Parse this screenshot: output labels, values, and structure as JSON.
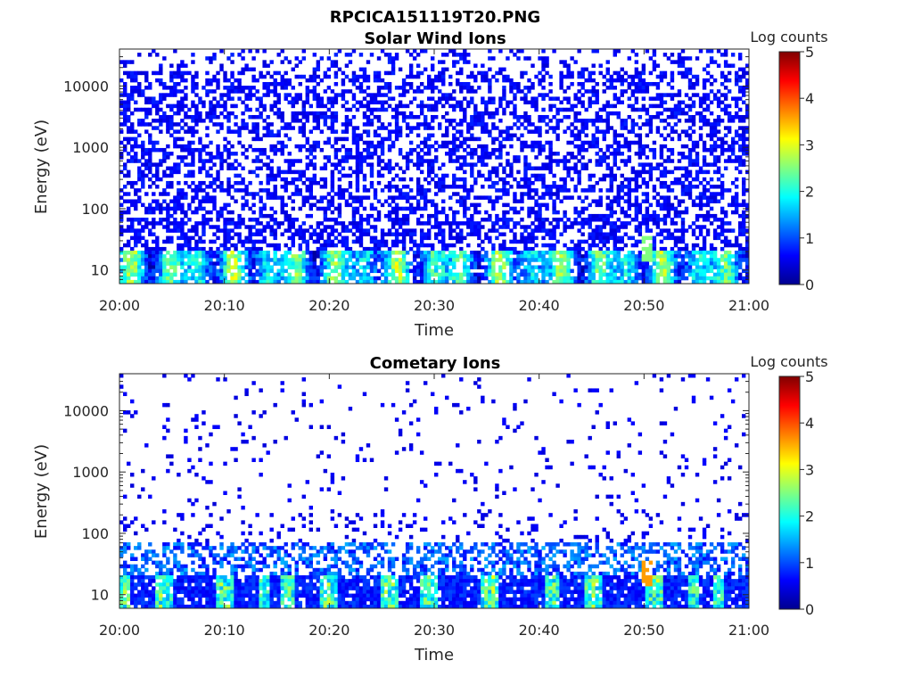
{
  "figure": {
    "title": "RPCICA151119T20.PNG"
  },
  "chart_data": [
    {
      "type": "heatmap",
      "title": "Solar Wind Ions",
      "xlabel": "Time",
      "ylabel": "Energy (eV)",
      "x_ticks": [
        "20:00",
        "20:10",
        "20:20",
        "20:30",
        "20:40",
        "20:50",
        "21:00"
      ],
      "x_range": [
        "20:00",
        "21:00"
      ],
      "y_scale": "log",
      "y_range": [
        6,
        40000
      ],
      "y_ticks": [
        10,
        100,
        1000,
        10000
      ],
      "y_tick_labels": [
        "10",
        "100",
        "1000",
        "10000"
      ],
      "colorbar": {
        "label": "Log counts",
        "range": [
          0,
          5
        ],
        "ticks": [
          "0",
          "1",
          "2",
          "3",
          "4",
          "5"
        ],
        "colormap": "jet"
      },
      "peak": {
        "time": "20:50",
        "energy_eV": 30,
        "log_counts": 2.5
      }
    },
    {
      "type": "heatmap",
      "title": "Cometary Ions",
      "xlabel": "Time",
      "ylabel": "Energy (eV)",
      "x_ticks": [
        "20:00",
        "20:10",
        "20:20",
        "20:30",
        "20:40",
        "20:50",
        "21:00"
      ],
      "x_range": [
        "20:00",
        "21:00"
      ],
      "y_scale": "log",
      "y_range": [
        6,
        40000
      ],
      "y_ticks": [
        10,
        100,
        1000,
        10000
      ],
      "y_tick_labels": [
        "10",
        "100",
        "1000",
        "10000"
      ],
      "colorbar": {
        "label": "Log counts",
        "range": [
          0,
          5
        ],
        "ticks": [
          "0",
          "1",
          "2",
          "3",
          "4",
          "5"
        ],
        "colormap": "jet"
      },
      "peak": {
        "time": "20:50",
        "energy_eV": 30,
        "log_counts": 3.6
      }
    }
  ]
}
